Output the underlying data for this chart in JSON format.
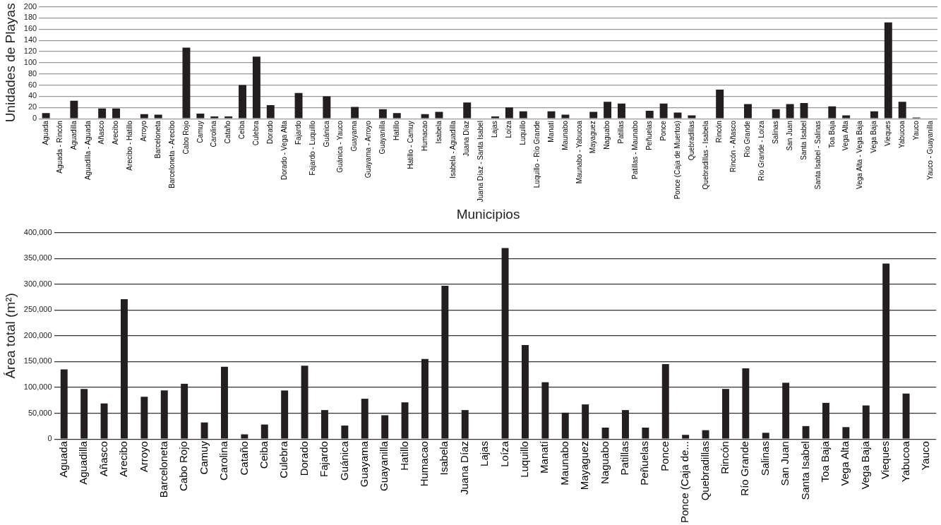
{
  "chart_data": [
    {
      "type": "bar",
      "ylabel": "Unidades de Playas",
      "xlabel": "Municipios",
      "color": "#231f20",
      "grid": "y",
      "categories": [
        "Aguada",
        "Aguada - Rincón",
        "Aguadilla",
        "Aguadilla - Aguada",
        "Añasco",
        "Arecibo",
        "Arecibo - Hatillo",
        "Arroyo",
        "Barceloneta",
        "Barceloneta - Arecibo",
        "Cabo Rojo",
        "Camuy",
        "Carolina",
        "Cataño",
        "Ceiba",
        "Culebra",
        "Dorado",
        "Dorado - Vega Alta",
        "Fajardo",
        "Fajardo - Luquillo",
        "Guánica",
        "Guánica - Yauco",
        "Guayama",
        "Guayama - Arroyo",
        "Guayanilla",
        "Hatillo",
        "Hatillo - Camuy",
        "Humacao",
        "Isabela",
        "Isabela - Aguadilla",
        "Juana Díaz",
        "Juana Díaz - Santa Isabel",
        "Lajas",
        "Loíza",
        "Luquillo",
        "Luquillo - Río Grande",
        "Manatí",
        "Maunabo",
        "Maunabo - Yabucoa",
        "Mayaguez",
        "Naguabo",
        "Patillas",
        "Patillas - Maunabo",
        "Peñuelas",
        "Ponce",
        "Ponce (Caja de Muertos)",
        "Quebradillas",
        "Quebradillas - Isabela",
        "Rincón",
        "Rincón - Añasco",
        "Río Grande",
        "Río Grande - Loíza",
        "Salinas",
        "San Juan",
        "Santa Isabel",
        "Santa Isabel - Salinas",
        "Toa Baja",
        "Vega Alta",
        "Vega Alta - Vega Baja",
        "Vega Baja",
        "Vieques",
        "Yabucoa",
        "Yauco",
        "Yauco - Guayanilla"
      ],
      "values": [
        10,
        null,
        32,
        null,
        18,
        18,
        null,
        8,
        7,
        null,
        127,
        9,
        4,
        4,
        60,
        111,
        24,
        null,
        46,
        null,
        40,
        null,
        21,
        null,
        17,
        10,
        null,
        8,
        12,
        null,
        29,
        null,
        4,
        20,
        13,
        null,
        13,
        7,
        null,
        12,
        30,
        27,
        null,
        14,
        27,
        11,
        6,
        null,
        52,
        null,
        26,
        null,
        17,
        26,
        28,
        null,
        22,
        6,
        null,
        13,
        172,
        30,
        2,
        null
      ],
      "ylim": [
        0,
        200
      ],
      "yticks": [
        0,
        20,
        40,
        60,
        80,
        100,
        120,
        140,
        160,
        180,
        200
      ]
    },
    {
      "type": "bar",
      "ylabel": "Área total (m²)",
      "color": "#231f20",
      "grid": "y",
      "categories": [
        "Aguada",
        "Aguadilla",
        "Añasco",
        "Arecibo",
        "Arroyo",
        "Barceloneta",
        "Cabo Rojo",
        "Camuy",
        "Carolina",
        "Cataño",
        "Ceiba",
        "Culebra",
        "Dorado",
        "Fajardo",
        "Guánica",
        "Guayama",
        "Guayanilla",
        "Hatillo",
        "Humacao",
        "Isabela",
        "Juana Díaz",
        "Lajas",
        "Loíza",
        "Luquillo",
        "Manatí",
        "Maunabo",
        "Mayaguez",
        "Naguabo",
        "Patillas",
        "Peñuelas",
        "Ponce",
        "Ponce (Caja de...",
        "Quebradillas",
        "Rincón",
        "Río Grande",
        "Salinas",
        "San Juan",
        "Santa Isabel",
        "Toa Baja",
        "Vega Alta",
        "Vega Baja",
        "Vieques",
        "Yabucoa",
        "Yauco"
      ],
      "values": [
        135000,
        97000,
        69000,
        271000,
        82000,
        94000,
        107000,
        32000,
        140000,
        9000,
        28000,
        94000,
        142000,
        56000,
        26000,
        78000,
        46000,
        71000,
        155000,
        297000,
        56000,
        null,
        370000,
        182000,
        110000,
        51000,
        67000,
        22000,
        56000,
        22000,
        145000,
        8000,
        17000,
        97000,
        137000,
        12000,
        109000,
        25000,
        70000,
        23000,
        65000,
        340000,
        88000,
        null
      ],
      "ylim": [
        0,
        400000
      ],
      "yticks": [
        {
          "value": 0,
          "label": "0"
        },
        {
          "value": 50000,
          "label": "50,000"
        },
        {
          "value": 100000,
          "label": "100,000"
        },
        {
          "value": 150000,
          "label": "150,000"
        },
        {
          "value": 200000,
          "label": "200,000"
        },
        {
          "value": 250000,
          "label": "250,000"
        },
        {
          "value": 300000,
          "label": "300,000"
        },
        {
          "value": 350000,
          "label": "350,000"
        },
        {
          "value": 400000,
          "label": "400,000"
        }
      ]
    }
  ]
}
